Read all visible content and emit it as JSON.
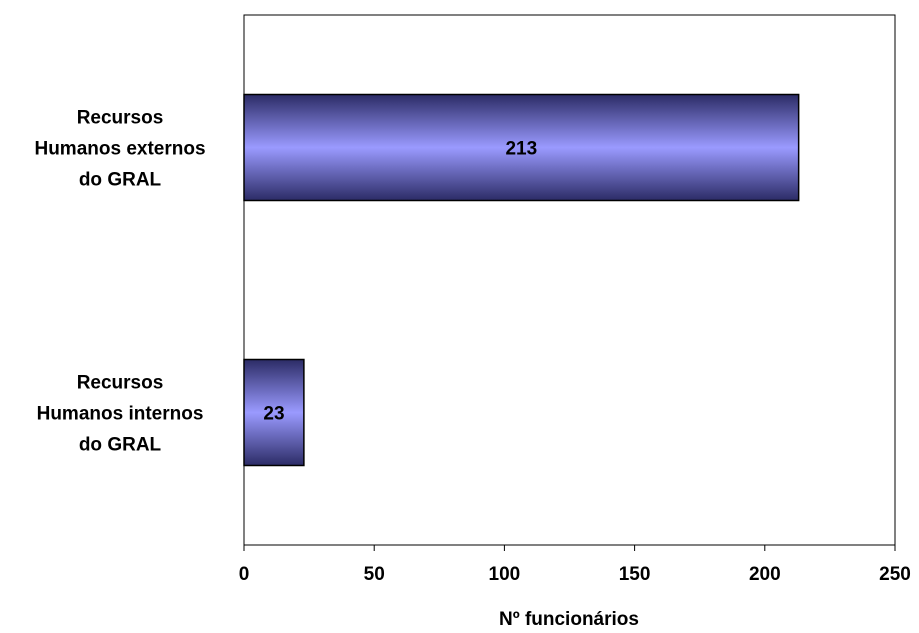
{
  "chart_data": {
    "type": "bar",
    "orientation": "horizontal",
    "categories": [
      [
        "Recursos",
        "Humanos externos",
        "do GRAL"
      ],
      [
        "Recursos",
        "Humanos internos",
        "do GRAL"
      ]
    ],
    "values": [
      213,
      23
    ],
    "data_labels": [
      "213",
      "23"
    ],
    "xlabel": "Nº funcionários",
    "ylabel": "",
    "title": "",
    "xlim": [
      0,
      250
    ],
    "xticks": [
      0,
      50,
      100,
      150,
      200,
      250
    ],
    "xtick_labels": [
      "0",
      "50",
      "100",
      "150",
      "200",
      "250"
    ],
    "grid": false,
    "legend": "none",
    "colors": {
      "bar_light": "#9a9aff",
      "bar_dark": "#2c2c66",
      "outline": "#000000"
    }
  }
}
